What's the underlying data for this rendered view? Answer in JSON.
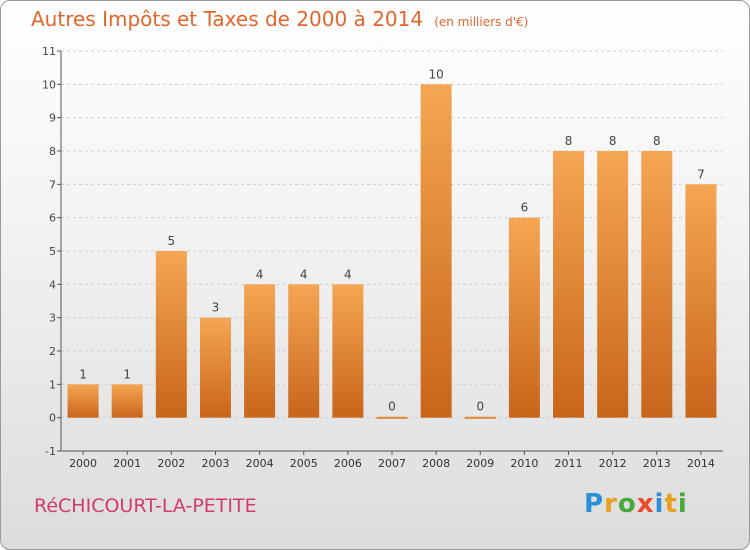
{
  "header": {
    "title": "Autres Impôts et Taxes de 2000 à 2014",
    "unit_note": "(en milliers d'€)"
  },
  "footer": {
    "commune": "RéCHICOURT-LA-PETITE",
    "logo": [
      "P",
      "r",
      "o",
      "x",
      "i",
      "t",
      "i"
    ],
    "logo_colors": [
      "#2b8fd6",
      "#e8a020",
      "#49a83c",
      "#e84a2a",
      "#2b8fd6",
      "#e8a020",
      "#49a83c"
    ]
  },
  "colors": {
    "bar_light": "#f5a653",
    "bar_dark": "#c8651a",
    "axis": "#555555",
    "grid": "#d0d0d0"
  },
  "chart_data": {
    "type": "bar",
    "title": "Autres Impôts et Taxes de 2000 à 2014",
    "subtitle": "(en milliers d'€)",
    "categories": [
      "2000",
      "2001",
      "2002",
      "2003",
      "2004",
      "2005",
      "2006",
      "2007",
      "2008",
      "2009",
      "2010",
      "2011",
      "2012",
      "2013",
      "2014"
    ],
    "values": [
      1,
      1,
      5,
      3,
      4,
      4,
      4,
      0,
      10,
      0,
      6,
      8,
      8,
      8,
      7
    ],
    "data_labels": [
      "1",
      "1",
      "5",
      "3",
      "4",
      "4",
      "4",
      "0",
      "10",
      "0",
      "6",
      "8",
      "8",
      "8",
      "7"
    ],
    "y_ticks": [
      "-1",
      "0",
      "1",
      "2",
      "3",
      "4",
      "5",
      "6",
      "7",
      "8",
      "9",
      "10",
      "11"
    ],
    "ylim": [
      -1,
      11
    ],
    "grid": "horizontal dashed"
  }
}
